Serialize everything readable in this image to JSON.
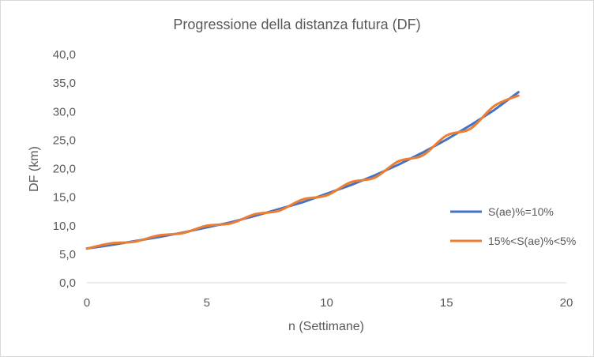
{
  "chart_data": {
    "type": "line",
    "title": "Progressione della distanza futura (DF)",
    "xlabel": "n (Settimane)",
    "ylabel": "DF (km)",
    "xlim": [
      0,
      20
    ],
    "ylim": [
      0,
      40
    ],
    "x_ticks": [
      "0",
      "5",
      "10",
      "15",
      "20"
    ],
    "y_ticks": [
      "0,0",
      "5,0",
      "10,0",
      "15,0",
      "20,0",
      "25,0",
      "30,0",
      "35,0",
      "40,0"
    ],
    "grid": false,
    "legend_position": "right",
    "series": [
      {
        "name": "S(ae)%=10%",
        "color": "#4472C4",
        "x": [
          0,
          1,
          2,
          3,
          4,
          5,
          6,
          7,
          8,
          9,
          10,
          11,
          12,
          13,
          14,
          15,
          16,
          17,
          18
        ],
        "y": [
          6.0,
          6.6,
          7.3,
          8.0,
          8.8,
          9.7,
          10.6,
          11.7,
          12.9,
          14.1,
          15.6,
          17.1,
          18.8,
          20.7,
          22.8,
          25.1,
          27.6,
          30.3,
          33.4
        ]
      },
      {
        "name": "15%<S(ae)%<5%",
        "color": "#ED7D31",
        "x": [
          0,
          1,
          2,
          3,
          4,
          5,
          6,
          7,
          8,
          9,
          10,
          11,
          12,
          13,
          14,
          15,
          16,
          17,
          18
        ],
        "y": [
          6.0,
          6.9,
          7.2,
          8.3,
          8.7,
          10.0,
          10.4,
          12.0,
          12.6,
          14.6,
          15.3,
          17.6,
          18.4,
          21.3,
          22.3,
          25.8,
          27.0,
          31.0,
          32.8
        ]
      }
    ]
  }
}
